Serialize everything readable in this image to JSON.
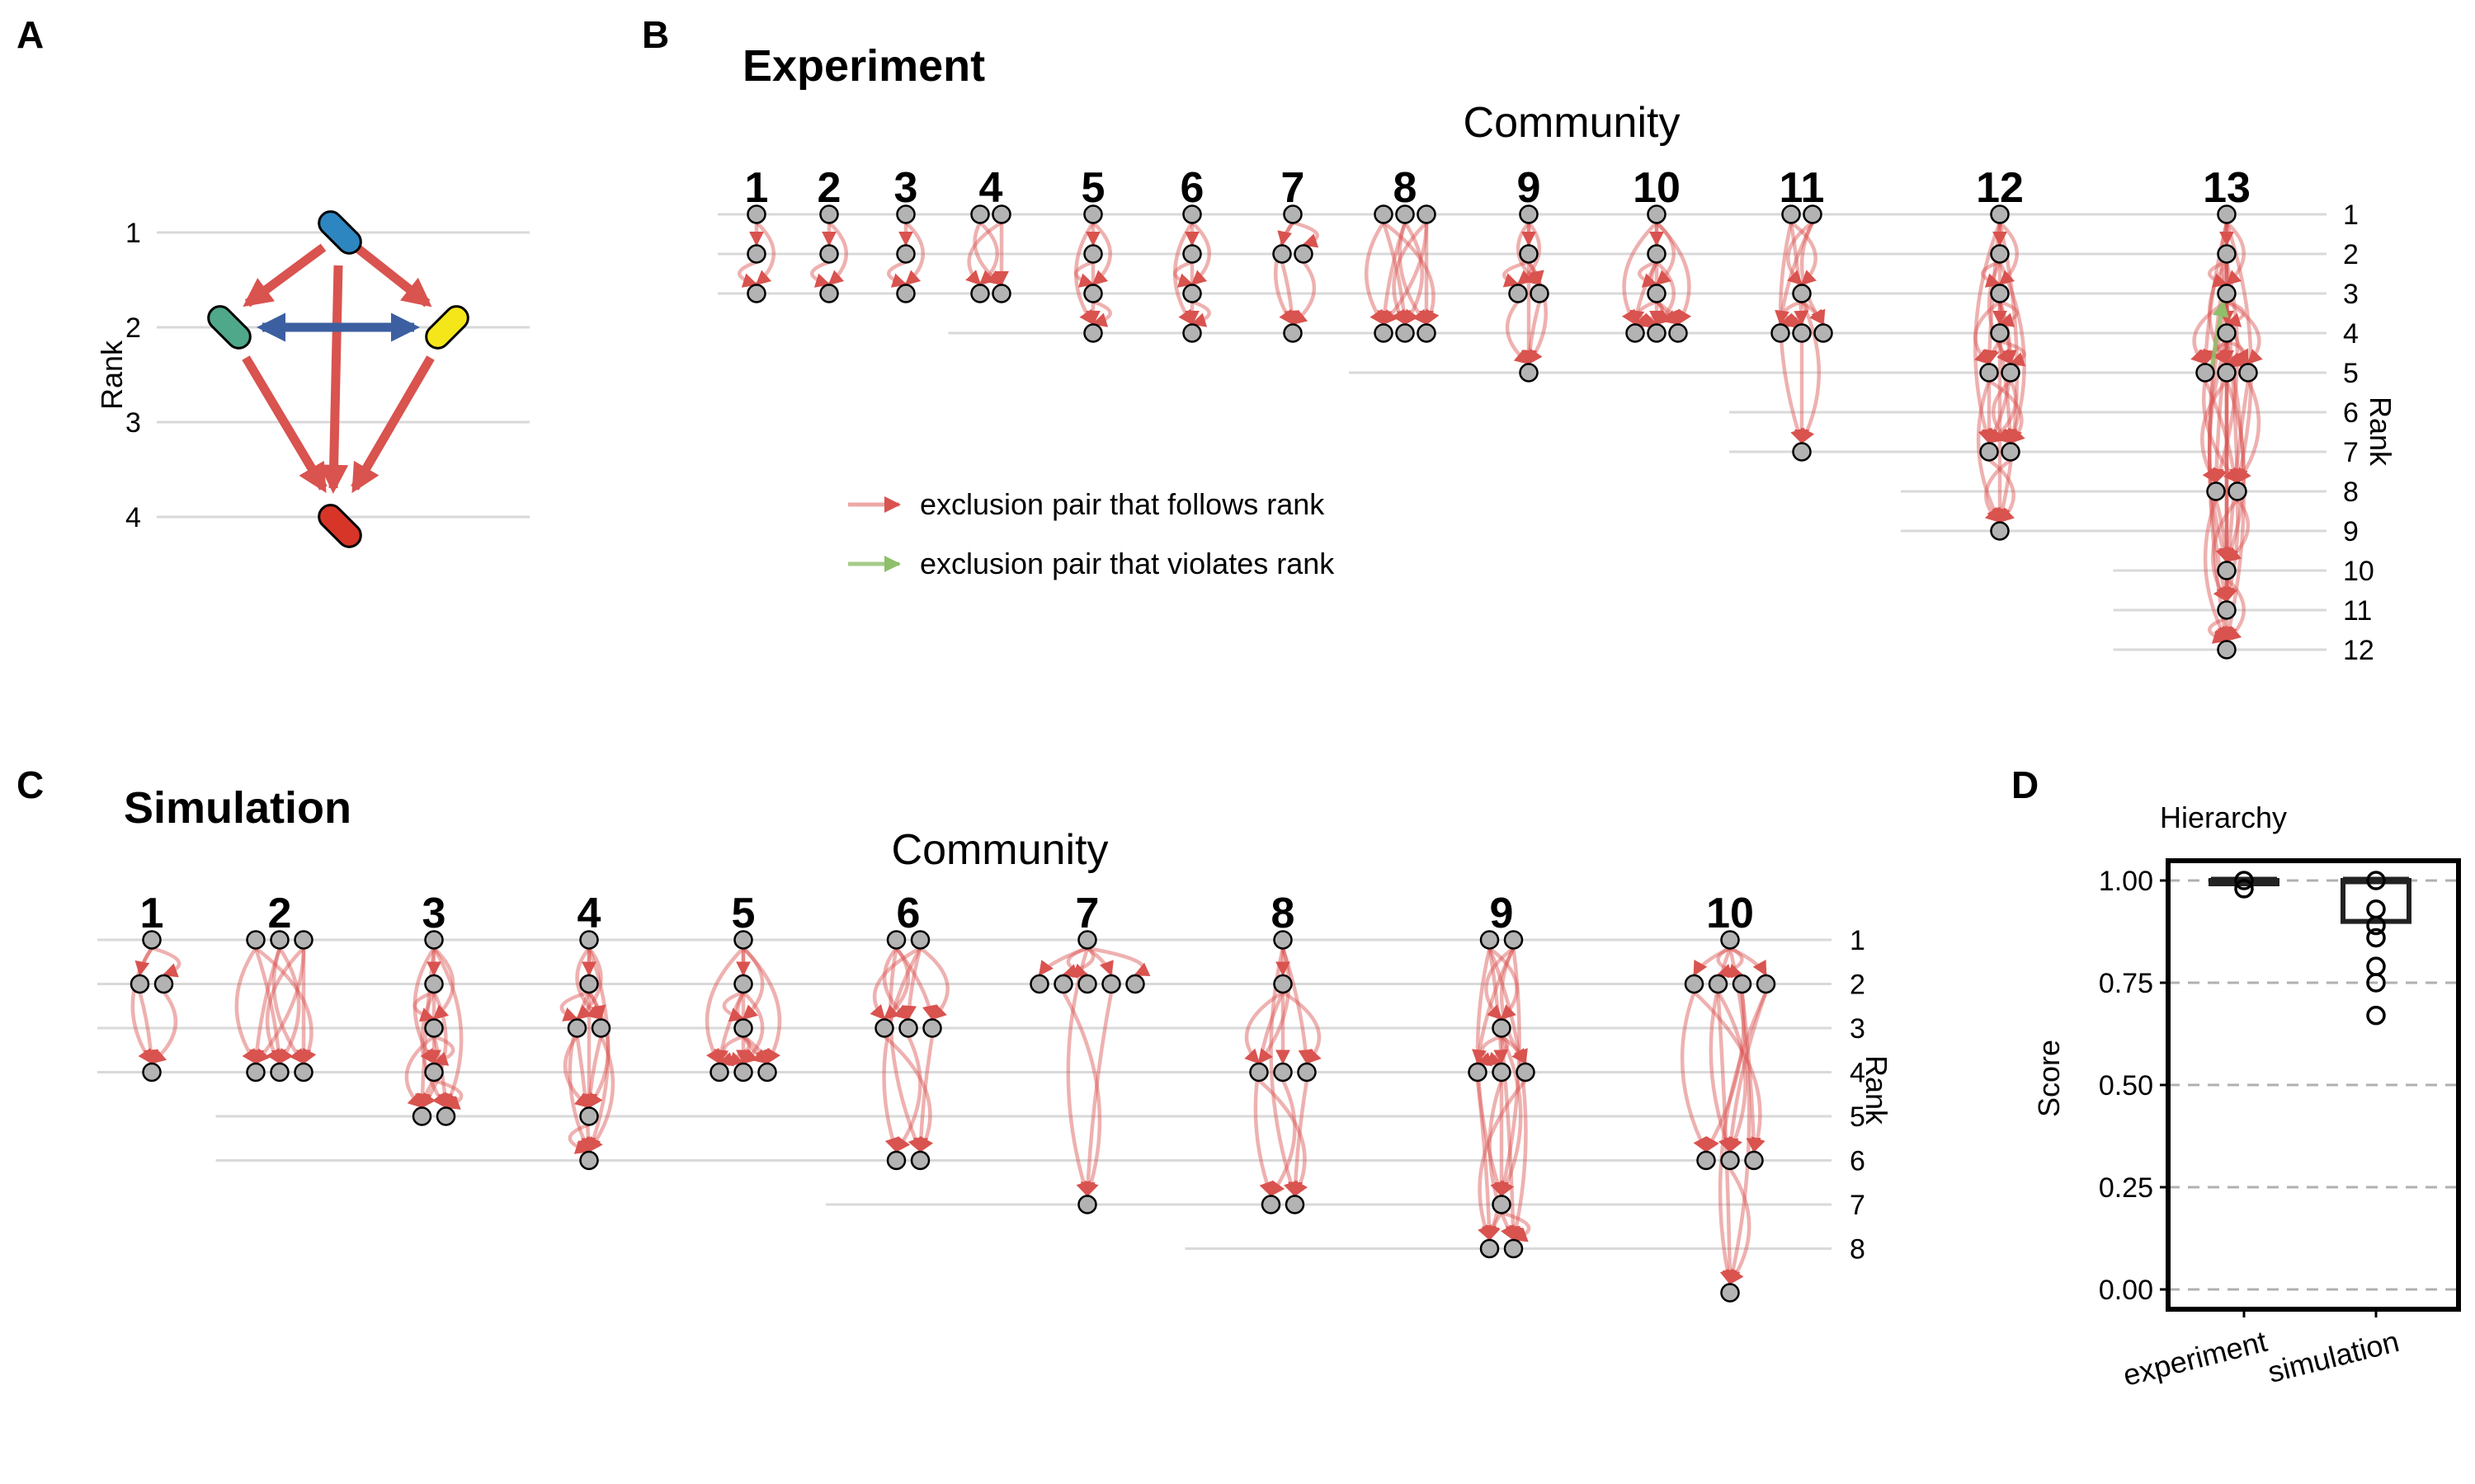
{
  "panels": {
    "A": {
      "label": "A",
      "rank_label": "Rank",
      "rank_ticks": [
        "1",
        "2",
        "3",
        "4"
      ]
    },
    "B": {
      "label": "B",
      "title": "Experiment",
      "community_label": "Community",
      "rank_label": "Rank",
      "communities": [
        "1",
        "2",
        "3",
        "4",
        "5",
        "6",
        "7",
        "8",
        "9",
        "10",
        "11",
        "12",
        "13"
      ],
      "rank_ticks": [
        "1",
        "2",
        "3",
        "4",
        "5",
        "6",
        "7",
        "8",
        "9",
        "10",
        "11",
        "12"
      ]
    },
    "C": {
      "label": "C",
      "title": "Simulation",
      "community_label": "Community",
      "rank_label": "Rank",
      "communities": [
        "1",
        "2",
        "3",
        "4",
        "5",
        "6",
        "7",
        "8",
        "9",
        "10"
      ],
      "rank_ticks": [
        "1",
        "2",
        "3",
        "4",
        "5",
        "6",
        "7",
        "8"
      ]
    },
    "D": {
      "label": "D",
      "title": "Hierarchy",
      "ylabel": "Score",
      "yticks": [
        "0.00",
        "0.25",
        "0.50",
        "0.75",
        "1.00"
      ],
      "categories": [
        "experiment",
        "simulation"
      ]
    }
  },
  "legend": {
    "follows": "exclusion pair that follows rank",
    "violates": "exclusion pair that violates rank"
  },
  "colors": {
    "follows": "#d9534f",
    "violates": "#8fbf6a",
    "node_fill": "#b3b3b3",
    "grid": "#d9d9d9",
    "species_blue": "#2e86c1",
    "species_green": "#4fa88a",
    "species_yellow": "#f5e61a",
    "species_red": "#d73527",
    "competition_arrow": "#3b5fa0"
  },
  "chart_data": [
    {
      "panel": "A",
      "type": "diagram",
      "species": [
        {
          "color": "blue",
          "rank": 1
        },
        {
          "color": "green",
          "rank": 2
        },
        {
          "color": "yellow",
          "rank": 2
        },
        {
          "color": "red",
          "rank": 4
        }
      ],
      "exclusions": [
        [
          "blue",
          "green"
        ],
        [
          "blue",
          "yellow"
        ],
        [
          "blue",
          "red"
        ],
        [
          "green",
          "red"
        ],
        [
          "yellow",
          "red"
        ]
      ],
      "coexistence": [
        [
          "green",
          "yellow"
        ]
      ]
    },
    {
      "panel": "B",
      "type": "network",
      "communities": [
        {
          "id": 1,
          "max_rank": 3,
          "nodes": [
            1,
            2,
            3
          ]
        },
        {
          "id": 2,
          "max_rank": 3,
          "nodes": [
            1,
            2,
            3
          ]
        },
        {
          "id": 3,
          "max_rank": 3,
          "nodes": [
            1,
            2,
            3
          ]
        },
        {
          "id": 4,
          "max_rank": 4,
          "nodes": [
            1,
            1,
            3,
            3
          ]
        },
        {
          "id": 5,
          "max_rank": 4,
          "nodes": [
            1,
            2,
            3,
            4
          ]
        },
        {
          "id": 6,
          "max_rank": 4,
          "nodes": [
            1,
            2,
            3,
            4
          ]
        },
        {
          "id": 7,
          "max_rank": 4,
          "nodes": [
            1,
            2,
            2,
            4
          ]
        },
        {
          "id": 8,
          "max_rank": 5,
          "nodes": [
            1,
            1,
            1,
            4,
            4,
            4
          ]
        },
        {
          "id": 9,
          "max_rank": 5,
          "nodes": [
            1,
            2,
            3,
            3,
            5
          ]
        },
        {
          "id": 10,
          "max_rank": 5,
          "nodes": [
            1,
            2,
            3,
            4,
            4,
            4
          ]
        },
        {
          "id": 11,
          "max_rank": 7,
          "nodes": [
            1,
            1,
            3,
            4,
            4,
            4,
            7
          ]
        },
        {
          "id": 12,
          "max_rank": 9,
          "nodes": [
            1,
            2,
            3,
            4,
            5,
            5,
            7,
            7,
            9
          ]
        },
        {
          "id": 13,
          "max_rank": 12,
          "nodes": [
            1,
            2,
            3,
            4,
            5,
            5,
            5,
            8,
            8,
            10,
            11,
            12
          ]
        }
      ],
      "violations": [
        {
          "community": 13,
          "from_rank": 5,
          "to_rank": 3
        }
      ]
    },
    {
      "panel": "C",
      "type": "network",
      "communities": [
        {
          "id": 1,
          "max_rank": 4,
          "nodes": [
            1,
            2,
            2,
            4
          ]
        },
        {
          "id": 2,
          "max_rank": 6,
          "nodes": [
            1,
            1,
            1,
            4,
            4,
            4
          ]
        },
        {
          "id": 3,
          "max_rank": 6,
          "nodes": [
            1,
            2,
            3,
            4,
            5,
            5
          ]
        },
        {
          "id": 4,
          "max_rank": 6,
          "nodes": [
            1,
            2,
            3,
            3,
            5,
            6
          ]
        },
        {
          "id": 5,
          "max_rank": 6,
          "nodes": [
            1,
            2,
            3,
            4,
            4,
            4
          ]
        },
        {
          "id": 6,
          "max_rank": 7,
          "nodes": [
            1,
            1,
            3,
            3,
            3,
            6,
            6
          ]
        },
        {
          "id": 7,
          "max_rank": 7,
          "nodes": [
            1,
            2,
            2,
            2,
            2,
            2,
            7
          ]
        },
        {
          "id": 8,
          "max_rank": 8,
          "nodes": [
            1,
            2,
            4,
            4,
            4,
            7,
            7
          ]
        },
        {
          "id": 9,
          "max_rank": 8,
          "nodes": [
            1,
            1,
            3,
            4,
            4,
            4,
            7,
            8,
            8
          ]
        },
        {
          "id": 10,
          "max_rank": 9,
          "nodes": [
            1,
            2,
            2,
            2,
            2,
            6,
            6,
            6,
            9
          ]
        }
      ]
    },
    {
      "panel": "D",
      "type": "box",
      "title": "Hierarchy",
      "ylabel": "Score",
      "ylim": [
        0,
        1
      ],
      "categories": [
        "experiment",
        "simulation"
      ],
      "series": [
        {
          "category": "experiment",
          "median": 1.0,
          "q1": 1.0,
          "q3": 1.0,
          "outliers": [
            0.98
          ]
        },
        {
          "category": "simulation",
          "median": 1.0,
          "q1": 0.9,
          "q3": 1.0,
          "outliers": [
            0.93,
            0.89,
            0.86,
            0.79,
            0.75,
            0.67
          ]
        }
      ]
    }
  ]
}
